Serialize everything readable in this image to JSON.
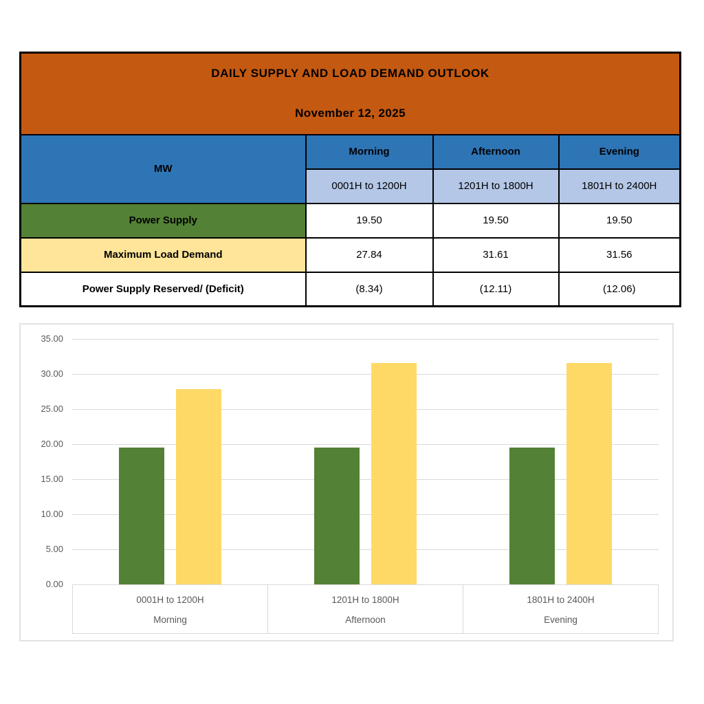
{
  "table": {
    "title": "DAILY SUPPLY AND LOAD DEMAND OUTLOOK",
    "date": "November 12, 2025",
    "unit_label": "MW",
    "periods": [
      {
        "name": "Morning",
        "hours": "0001H to 1200H"
      },
      {
        "name": "Afternoon",
        "hours": "1201H to 1800H"
      },
      {
        "name": "Evening",
        "hours": "1801H to 2400H"
      }
    ],
    "rows": [
      {
        "label": "Power Supply",
        "values": [
          "19.50",
          "19.50",
          "19.50"
        ]
      },
      {
        "label": "Maximum Load Demand",
        "values": [
          "27.84",
          "31.61",
          "31.56"
        ]
      },
      {
        "label": "Power Supply Reserved/ (Deficit)",
        "values": [
          "(8.34)",
          "(12.11)",
          "(12.06)"
        ]
      }
    ]
  },
  "chart_data": {
    "type": "bar",
    "categories": [
      "0001H to 1200H",
      "1201H to 1800H",
      "1801H to 2400H"
    ],
    "category_groups": [
      "Morning",
      "Afternoon",
      "Evening"
    ],
    "series": [
      {
        "name": "Power Supply",
        "color": "#538135",
        "values": [
          19.5,
          19.5,
          19.5
        ]
      },
      {
        "name": "Maximum Load Demand",
        "color": "#FFD966",
        "values": [
          27.84,
          31.61,
          31.56
        ]
      }
    ],
    "title": "",
    "xlabel": "",
    "ylabel": "",
    "ylim": [
      0,
      35
    ],
    "ytick_step": 5,
    "yticks": [
      "35.00",
      "30.00",
      "25.00",
      "20.00",
      "15.00",
      "10.00",
      "5.00",
      "0.00"
    ],
    "grid": true,
    "legend_position": "none"
  },
  "colors": {
    "banner_orange": "#C45911",
    "header_blue": "#2E75B6",
    "subheader_light_blue": "#B4C7E7",
    "supply_green": "#538135",
    "demand_row_yellow": "#FFE599",
    "demand_bar_yellow": "#FFD966",
    "table_border": "#000000",
    "gridline_gray": "#D9D9D9",
    "axis_text_gray": "#595959"
  }
}
